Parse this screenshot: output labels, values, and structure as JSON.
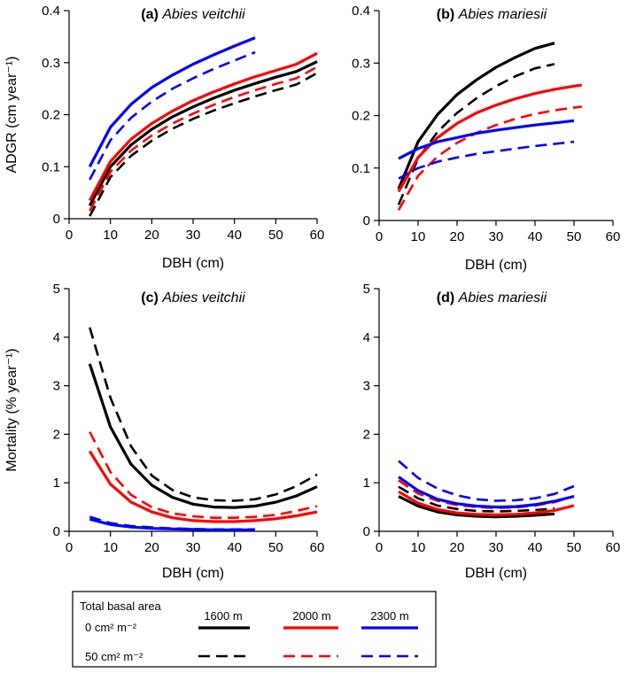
{
  "chart_data": [
    {
      "type": "line",
      "title_label": "(a)",
      "title_species": "Abies veitchii",
      "xlabel": "DBH (cm)",
      "ylabel": "ADGR (cm year⁻¹)",
      "xlim": [
        0,
        60
      ],
      "ylim": [
        0,
        0.4
      ],
      "xticks": [
        "0",
        "10",
        "20",
        "30",
        "40",
        "50",
        "60"
      ],
      "yticks": [
        "0",
        "0.1",
        "0.2",
        "0.3",
        "0.4"
      ],
      "series": [
        {
          "name": "1600 m, 0 cm² m⁻²",
          "color": "#000000",
          "dash": false,
          "x": [
            5,
            10,
            15,
            20,
            25,
            30,
            35,
            40,
            45,
            50,
            55,
            60
          ],
          "y": [
            0.025,
            0.1,
            0.142,
            0.172,
            0.196,
            0.215,
            0.232,
            0.247,
            0.26,
            0.272,
            0.283,
            0.302
          ]
        },
        {
          "name": "1600 m, 50 cm² m⁻²",
          "color": "#000000",
          "dash": true,
          "x": [
            5,
            10,
            15,
            20,
            25,
            30,
            35,
            40,
            45,
            50,
            55,
            60
          ],
          "y": [
            0.005,
            0.08,
            0.121,
            0.15,
            0.173,
            0.192,
            0.208,
            0.222,
            0.235,
            0.247,
            0.258,
            0.28
          ]
        },
        {
          "name": "2000 m, 0 cm² m⁻²",
          "color": "#ff0000",
          "dash": false,
          "x": [
            5,
            10,
            15,
            20,
            25,
            30,
            35,
            40,
            45,
            50,
            55,
            60
          ],
          "y": [
            0.035,
            0.11,
            0.153,
            0.183,
            0.207,
            0.227,
            0.244,
            0.259,
            0.273,
            0.285,
            0.297,
            0.318
          ]
        },
        {
          "name": "2000 m, 50 cm² m⁻²",
          "color": "#ff0000",
          "dash": true,
          "x": [
            5,
            10,
            15,
            20,
            25,
            30,
            35,
            40,
            45,
            50,
            55,
            60
          ],
          "y": [
            0.015,
            0.09,
            0.131,
            0.16,
            0.183,
            0.202,
            0.219,
            0.234,
            0.247,
            0.259,
            0.27,
            0.292
          ]
        },
        {
          "name": "2300 m, 0 cm² m⁻²",
          "color": "#0000ff",
          "dash": false,
          "x": [
            5,
            10,
            15,
            20,
            25,
            30,
            35,
            40,
            45
          ],
          "y": [
            0.1,
            0.176,
            0.22,
            0.252,
            0.276,
            0.297,
            0.315,
            0.332,
            0.348
          ]
        },
        {
          "name": "2300 m, 50 cm² m⁻²",
          "color": "#0000ff",
          "dash": true,
          "x": [
            5,
            10,
            15,
            20,
            25,
            30,
            35,
            40,
            45
          ],
          "y": [
            0.075,
            0.151,
            0.194,
            0.225,
            0.25,
            0.27,
            0.288,
            0.304,
            0.32
          ]
        }
      ]
    },
    {
      "type": "line",
      "title_label": "(b)",
      "title_species": "Abies mariesii",
      "xlabel": "DBH (cm)",
      "ylabel": "",
      "xlim": [
        0,
        60
      ],
      "ylim": [
        0,
        0.4
      ],
      "xticks": [
        "0",
        "10",
        "20",
        "30",
        "40",
        "50",
        "60"
      ],
      "yticks": [
        "0",
        "0.1",
        "0.2",
        "0.3",
        "0.4"
      ],
      "series": [
        {
          "name": "1600 m, 0 cm² m⁻²",
          "color": "#000000",
          "dash": false,
          "x": [
            5,
            10,
            15,
            20,
            25,
            30,
            35,
            40,
            45
          ],
          "y": [
            0.06,
            0.15,
            0.202,
            0.24,
            0.268,
            0.292,
            0.311,
            0.328,
            0.338
          ]
        },
        {
          "name": "1600 m, 50 cm² m⁻²",
          "color": "#000000",
          "dash": true,
          "x": [
            5,
            10,
            15,
            20,
            25,
            30,
            35,
            40,
            45
          ],
          "y": [
            0.03,
            0.118,
            0.169,
            0.205,
            0.233,
            0.256,
            0.275,
            0.29,
            0.298
          ]
        },
        {
          "name": "2000 m, 0 cm² m⁻²",
          "color": "#ff0000",
          "dash": false,
          "x": [
            5,
            10,
            15,
            20,
            25,
            30,
            35,
            40,
            45,
            50,
            52
          ],
          "y": [
            0.055,
            0.12,
            0.158,
            0.185,
            0.205,
            0.22,
            0.232,
            0.242,
            0.25,
            0.256,
            0.258
          ]
        },
        {
          "name": "2000 m, 50 cm² m⁻²",
          "color": "#ff0000",
          "dash": true,
          "x": [
            5,
            10,
            15,
            20,
            25,
            30,
            35,
            40,
            45,
            50,
            52
          ],
          "y": [
            0.02,
            0.085,
            0.122,
            0.148,
            0.167,
            0.182,
            0.194,
            0.203,
            0.21,
            0.215,
            0.217
          ]
        },
        {
          "name": "2300 m, 0 cm² m⁻²",
          "color": "#0000ff",
          "dash": false,
          "x": [
            5,
            10,
            15,
            20,
            25,
            30,
            35,
            40,
            45,
            50
          ],
          "y": [
            0.118,
            0.137,
            0.15,
            0.158,
            0.166,
            0.172,
            0.177,
            0.182,
            0.186,
            0.19
          ]
        },
        {
          "name": "2300 m, 50 cm² m⁻²",
          "color": "#0000ff",
          "dash": true,
          "x": [
            5,
            10,
            15,
            20,
            25,
            30,
            35,
            40,
            45,
            50
          ],
          "y": [
            0.08,
            0.1,
            0.112,
            0.12,
            0.127,
            0.132,
            0.137,
            0.142,
            0.146,
            0.15
          ]
        }
      ]
    },
    {
      "type": "line",
      "title_label": "(c)",
      "title_species": "Abies veitchii",
      "xlabel": "DBH (cm)",
      "ylabel": "Mortality (% year⁻¹)",
      "xlim": [
        0,
        60
      ],
      "ylim": [
        0,
        5
      ],
      "xticks": [
        "0",
        "10",
        "20",
        "30",
        "40",
        "50",
        "60"
      ],
      "yticks": [
        "0",
        "1",
        "2",
        "3",
        "4",
        "5"
      ],
      "series": [
        {
          "name": "1600 m, 0 cm² m⁻²",
          "color": "#000000",
          "dash": false,
          "x": [
            5,
            10,
            15,
            20,
            25,
            30,
            35,
            40,
            45,
            50,
            55,
            60
          ],
          "y": [
            3.45,
            2.15,
            1.38,
            0.95,
            0.7,
            0.56,
            0.5,
            0.49,
            0.52,
            0.6,
            0.73,
            0.92
          ]
        },
        {
          "name": "1600 m, 50 cm² m⁻²",
          "color": "#000000",
          "dash": true,
          "x": [
            5,
            10,
            15,
            20,
            25,
            30,
            35,
            40,
            45,
            50,
            55,
            60
          ],
          "y": [
            4.2,
            2.75,
            1.75,
            1.15,
            0.85,
            0.7,
            0.64,
            0.63,
            0.66,
            0.76,
            0.93,
            1.17
          ]
        },
        {
          "name": "2000 m, 0 cm² m⁻²",
          "color": "#ff0000",
          "dash": false,
          "x": [
            5,
            10,
            15,
            20,
            25,
            30,
            35,
            40,
            45,
            50,
            55,
            60
          ],
          "y": [
            1.65,
            0.97,
            0.6,
            0.4,
            0.28,
            0.22,
            0.2,
            0.2,
            0.22,
            0.26,
            0.32,
            0.4
          ]
        },
        {
          "name": "2000 m, 50 cm² m⁻²",
          "color": "#ff0000",
          "dash": true,
          "x": [
            5,
            10,
            15,
            20,
            25,
            30,
            35,
            40,
            45,
            50,
            55,
            60
          ],
          "y": [
            2.05,
            1.22,
            0.75,
            0.5,
            0.37,
            0.31,
            0.28,
            0.28,
            0.3,
            0.34,
            0.42,
            0.52
          ]
        },
        {
          "name": "2300 m, 0 cm² m⁻²",
          "color": "#0000ff",
          "dash": false,
          "x": [
            5,
            10,
            15,
            20,
            25,
            30,
            35,
            40,
            45
          ],
          "y": [
            0.25,
            0.14,
            0.09,
            0.06,
            0.05,
            0.04,
            0.03,
            0.03,
            0.03
          ]
        },
        {
          "name": "2300 m, 50 cm² m⁻²",
          "color": "#0000ff",
          "dash": true,
          "x": [
            5,
            10,
            15,
            20,
            25,
            30,
            35,
            40,
            45
          ],
          "y": [
            0.3,
            0.17,
            0.11,
            0.08,
            0.06,
            0.05,
            0.04,
            0.04,
            0.04
          ]
        }
      ]
    },
    {
      "type": "line",
      "title_label": "(d)",
      "title_species": "Abies mariesii",
      "xlabel": "DBH (cm)",
      "ylabel": "",
      "xlim": [
        0,
        60
      ],
      "ylim": [
        0,
        5
      ],
      "xticks": [
        "0",
        "10",
        "20",
        "30",
        "40",
        "50",
        "60"
      ],
      "yticks": [
        "0",
        "1",
        "2",
        "3",
        "4",
        "5"
      ],
      "series": [
        {
          "name": "1600 m, 0 cm² m⁻²",
          "color": "#000000",
          "dash": false,
          "x": [
            5,
            10,
            15,
            20,
            25,
            30,
            35,
            40,
            45
          ],
          "y": [
            0.72,
            0.52,
            0.4,
            0.34,
            0.31,
            0.3,
            0.31,
            0.33,
            0.36
          ]
        },
        {
          "name": "1600 m, 50 cm² m⁻²",
          "color": "#000000",
          "dash": true,
          "x": [
            5,
            10,
            15,
            20,
            25,
            30,
            35,
            40,
            45
          ],
          "y": [
            0.92,
            0.68,
            0.53,
            0.46,
            0.42,
            0.41,
            0.42,
            0.44,
            0.47
          ]
        },
        {
          "name": "2000 m, 0 cm² m⁻²",
          "color": "#ff0000",
          "dash": false,
          "x": [
            5,
            10,
            15,
            20,
            25,
            30,
            35,
            40,
            45,
            50
          ],
          "y": [
            0.82,
            0.58,
            0.45,
            0.38,
            0.35,
            0.34,
            0.35,
            0.38,
            0.43,
            0.53
          ]
        },
        {
          "name": "2000 m, 50 cm² m⁻²",
          "color": "#ff0000",
          "dash": true,
          "x": [
            5,
            10,
            15,
            20,
            25,
            30,
            35,
            40,
            45,
            50
          ],
          "y": [
            1.05,
            0.78,
            0.63,
            0.54,
            0.5,
            0.48,
            0.49,
            0.53,
            0.6,
            0.72
          ]
        },
        {
          "name": "2300 m, 0 cm² m⁻²",
          "color": "#0000ff",
          "dash": false,
          "x": [
            5,
            10,
            15,
            20,
            25,
            30,
            35,
            40,
            45,
            50
          ],
          "y": [
            1.12,
            0.84,
            0.66,
            0.57,
            0.52,
            0.5,
            0.51,
            0.55,
            0.62,
            0.72
          ]
        },
        {
          "name": "2300 m, 50 cm² m⁻²",
          "color": "#0000ff",
          "dash": true,
          "x": [
            5,
            10,
            15,
            20,
            25,
            30,
            35,
            40,
            45,
            50
          ],
          "y": [
            1.45,
            1.1,
            0.88,
            0.74,
            0.66,
            0.63,
            0.64,
            0.68,
            0.77,
            0.93
          ]
        }
      ]
    }
  ],
  "legend": {
    "title": "Total basal area",
    "row_labels": [
      "0 cm² m⁻²",
      "50 cm² m⁻²"
    ],
    "columns": [
      {
        "label": "1600 m",
        "color": "#000000"
      },
      {
        "label": "2000 m",
        "color": "#ff0000"
      },
      {
        "label": "2300 m",
        "color": "#0000ff"
      }
    ]
  }
}
